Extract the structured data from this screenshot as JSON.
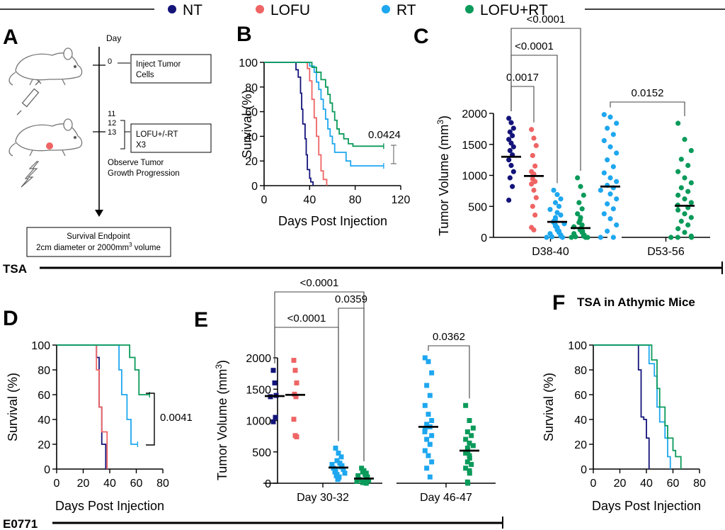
{
  "colors": {
    "NT": "#13137a",
    "LOFU": "#ef6464",
    "RT": "#1ea7ef",
    "LOFU+RT": "#0a9a5a"
  },
  "legend": [
    {
      "label": "NT",
      "group": "NT"
    },
    {
      "label": "LOFU",
      "group": "LOFU"
    },
    {
      "label": "RT",
      "group": "RT"
    },
    {
      "label": "LOFU+RT",
      "group": "LOFU+RT"
    }
  ],
  "bands": {
    "tsa": "TSA",
    "e0771": "E0771"
  },
  "panel_a": {
    "letter": "A",
    "day_header": "Day",
    "day0": "0",
    "inject_box": [
      "Inject Tumor",
      "Cells"
    ],
    "day_numbers": [
      "11",
      "12",
      "13"
    ],
    "treatment_box": [
      "LOFU+/-RT",
      "X3"
    ],
    "observe": [
      "Observe Tumor",
      "Growth Progression"
    ],
    "endpoint_box": [
      "Survival  Endpoint",
      "2cm diameter or 2000mm"
    ],
    "endpoint_sup": "3",
    "endpoint_tail": " volume"
  },
  "chart_data": [
    {
      "id": "B",
      "letter": "B",
      "type": "line",
      "title": "",
      "xlabel": "Days Post Injection",
      "ylabel": "Survival (%)",
      "xlim": [
        0,
        120
      ],
      "ylim": [
        0,
        100
      ],
      "xticks": [
        "0",
        "40",
        "80",
        "120"
      ],
      "yticks": [
        "0",
        "20",
        "40",
        "60",
        "80",
        "100"
      ],
      "series": [
        {
          "name": "NT",
          "x": [
            0,
            28,
            30,
            32,
            33,
            34,
            36,
            37,
            38,
            40,
            41,
            43
          ],
          "y": [
            100,
            94,
            88,
            75,
            62,
            50,
            38,
            25,
            13,
            6,
            3,
            0
          ]
        },
        {
          "name": "LOFU",
          "x": [
            0,
            38,
            40,
            42,
            44,
            46,
            48,
            50,
            52,
            55
          ],
          "y": [
            100,
            95,
            85,
            70,
            55,
            40,
            25,
            12,
            5,
            0
          ]
        },
        {
          "name": "RT",
          "x": [
            0,
            40,
            44,
            46,
            48,
            50,
            52,
            54,
            56,
            58,
            60,
            62,
            66,
            70,
            72,
            76,
            105
          ],
          "y": [
            100,
            97,
            92,
            84,
            78,
            70,
            62,
            54,
            46,
            40,
            34,
            27,
            27,
            27,
            20,
            16,
            16
          ]
        },
        {
          "name": "LOFU+RT",
          "x": [
            0,
            42,
            46,
            50,
            54,
            56,
            58,
            60,
            62,
            64,
            66,
            70,
            74,
            78,
            105
          ],
          "y": [
            100,
            96,
            92,
            86,
            80,
            74,
            67,
            60,
            53,
            46,
            42,
            38,
            34,
            32,
            32
          ]
        }
      ],
      "annotations": [
        {
          "text": "0.0424"
        }
      ]
    },
    {
      "id": "C",
      "letter": "C",
      "type": "scatter",
      "title": "",
      "xlabel": "",
      "ylabel": "Tumor Volume (mm3)",
      "ylim": [
        0,
        2000
      ],
      "yticks": [
        "0",
        "500",
        "1000",
        "1500",
        "2000"
      ],
      "categories": [
        "D38-40",
        "D53-56"
      ],
      "series": [
        {
          "name": "NT",
          "values": [
            1920,
            1850,
            1760,
            1700,
            1640,
            1580,
            1520,
            1460,
            1400,
            1330,
            1250,
            1160,
            1060,
            960,
            820,
            600
          ]
        },
        {
          "name": "LOFU",
          "values": [
            1740,
            1600,
            1480,
            1320,
            1150,
            1060,
            1020,
            990,
            940,
            900,
            860,
            760,
            640,
            500,
            360,
            160,
            120
          ]
        },
        {
          "name": "RT",
          "values": [
            760,
            690,
            620,
            560,
            500,
            450,
            400,
            360,
            320,
            290,
            260,
            240,
            220,
            200,
            180,
            160,
            140,
            120,
            100,
            80,
            60,
            40,
            20,
            10,
            0,
            0
          ]
        },
        {
          "name": "LOFU+RT",
          "values": [
            960,
            820,
            680,
            560,
            460,
            380,
            320,
            280,
            240,
            200,
            170,
            140,
            120,
            100,
            80,
            60,
            40,
            20,
            10,
            0,
            0,
            0
          ]
        },
        {
          "name": "RT",
          "values": [
            1980,
            1940,
            1840,
            1760,
            1660,
            1560,
            1460,
            1360,
            1250,
            1140,
            1040,
            960,
            900,
            840,
            800,
            760,
            700,
            620,
            540,
            460,
            380,
            300,
            200,
            100,
            0,
            0
          ]
        },
        {
          "name": "LOFU+RT",
          "values": [
            1840,
            1580,
            1400,
            1260,
            1160,
            1060,
            960,
            880,
            800,
            740,
            680,
            620,
            560,
            520,
            480,
            440,
            380,
            320,
            260,
            200,
            140,
            80,
            20,
            0,
            0,
            0
          ]
        }
      ],
      "means": [
        1300,
        990,
        250,
        150,
        820,
        510
      ],
      "comparisons": [
        {
          "text": "0.0017",
          "from": 0,
          "to": 1
        },
        {
          "text": "<0.0001",
          "from": 0,
          "to": 2
        },
        {
          "text": "<0.0001",
          "from": 0,
          "to": 3
        },
        {
          "text": "0.0152",
          "from": 4,
          "to": 5
        }
      ]
    },
    {
      "id": "D",
      "letter": "D",
      "type": "line",
      "title": "",
      "xlabel": "Days Post Injection",
      "ylabel": "Survival (%)",
      "xlim": [
        0,
        80
      ],
      "ylim": [
        0,
        100
      ],
      "xticks": [
        "0",
        "20",
        "40",
        "60",
        "80"
      ],
      "yticks": [
        "0",
        "20",
        "40",
        "60",
        "80",
        "100"
      ],
      "series": [
        {
          "name": "NT",
          "x": [
            0,
            30,
            32,
            34,
            37
          ],
          "y": [
            100,
            90,
            50,
            20,
            0
          ]
        },
        {
          "name": "LOFU",
          "x": [
            0,
            30,
            32,
            34,
            38
          ],
          "y": [
            100,
            80,
            50,
            30,
            0
          ]
        },
        {
          "name": "RT",
          "x": [
            0,
            47,
            49,
            53,
            56,
            58,
            61
          ],
          "y": [
            100,
            80,
            60,
            40,
            20,
            20,
            20
          ]
        },
        {
          "name": "LOFU+RT",
          "x": [
            0,
            52,
            55,
            59,
            62,
            70
          ],
          "y": [
            100,
            100,
            90,
            80,
            60,
            60
          ]
        }
      ],
      "annotations": [
        {
          "text": "0.0041"
        }
      ]
    },
    {
      "id": "E",
      "letter": "E",
      "type": "scatter",
      "title": "",
      "xlabel": "",
      "ylabel": "Tumor Volume (mm3)",
      "ylim": [
        0,
        2000
      ],
      "yticks": [
        "0",
        "500",
        "1000",
        "1500",
        "2000"
      ],
      "categories": [
        "Day 30-32",
        "Day 46-47"
      ],
      "series": [
        {
          "name": "NT",
          "values": [
            1800,
            1600,
            1400,
            1380,
            1050,
            980
          ]
        },
        {
          "name": "LOFU",
          "values": [
            1960,
            1800,
            1600,
            1420,
            1380,
            1020,
            760,
            740
          ]
        },
        {
          "name": "RT",
          "values": [
            560,
            480,
            420,
            360,
            320,
            300,
            280,
            260,
            240,
            220,
            200,
            180,
            160,
            140,
            120,
            100,
            80,
            60
          ]
        },
        {
          "name": "LOFU+RT",
          "values": [
            240,
            200,
            180,
            160,
            140,
            120,
            100,
            80,
            60,
            40,
            30,
            20,
            10,
            0
          ]
        },
        {
          "name": "RT",
          "values": [
            2000,
            1940,
            1760,
            1560,
            1400,
            1240,
            1100,
            1000,
            940,
            900,
            860,
            820,
            760,
            700,
            620,
            520,
            440,
            340,
            240,
            100
          ]
        },
        {
          "name": "LOFU+RT",
          "values": [
            1240,
            1000,
            880,
            820,
            760,
            700,
            640,
            600,
            560,
            520,
            480,
            440,
            400,
            340,
            300,
            240,
            200,
            160,
            20,
            0
          ]
        }
      ],
      "means": [
        1390,
        1410,
        250,
        75,
        900,
        520
      ],
      "comparisons": [
        {
          "text": "<0.0001",
          "from": 0,
          "to": 2
        },
        {
          "text": "<0.0001",
          "from": 0,
          "to": 3
        },
        {
          "text": "0.0359",
          "from": 2,
          "to": 3
        },
        {
          "text": "0.0362",
          "from": 4,
          "to": 5
        }
      ]
    },
    {
      "id": "F",
      "letter": "F",
      "type": "line",
      "title": "TSA in Athymic Mice",
      "xlabel": "Days Post Injection",
      "ylabel": "Survival (%)",
      "xlim": [
        0,
        80
      ],
      "ylim": [
        0,
        100
      ],
      "xticks": [
        "0",
        "20",
        "40",
        "60",
        "80"
      ],
      "yticks": [
        "0",
        "20",
        "40",
        "60",
        "80",
        "100"
      ],
      "series": [
        {
          "name": "NT",
          "x": [
            0,
            34,
            36,
            38,
            40,
            42
          ],
          "y": [
            100,
            80,
            42,
            40,
            25,
            0
          ]
        },
        {
          "name": "RT",
          "x": [
            0,
            42,
            46,
            48,
            50,
            54,
            56,
            58
          ],
          "y": [
            100,
            85,
            75,
            50,
            38,
            25,
            10,
            0
          ]
        },
        {
          "name": "LOFU+RT",
          "x": [
            0,
            44,
            48,
            50,
            54,
            56,
            60,
            62,
            66
          ],
          "y": [
            100,
            88,
            65,
            50,
            35,
            25,
            15,
            10,
            0
          ]
        }
      ],
      "annotations": []
    }
  ]
}
